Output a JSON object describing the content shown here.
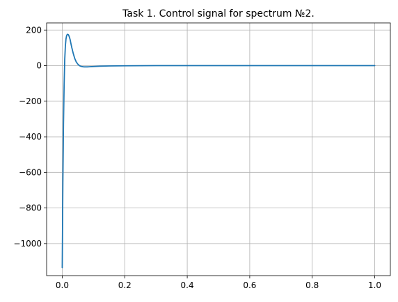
{
  "chart_data": {
    "type": "line",
    "title": "Task 1. Control signal for spectrum №2.",
    "xlabel": "",
    "ylabel": "",
    "xlim": [
      -0.05,
      1.05
    ],
    "ylim": [
      -1180,
      240
    ],
    "grid": true,
    "legend": "none",
    "xticks": [
      0.0,
      0.2,
      0.4,
      0.6,
      0.8,
      1.0
    ],
    "xtick_labels": [
      "0.0",
      "0.2",
      "0.4",
      "0.6",
      "0.8",
      "1.0"
    ],
    "yticks": [
      200,
      0,
      -200,
      -400,
      -600,
      -800,
      -1000
    ],
    "ytick_labels": [
      "200",
      "0",
      "−200",
      "−400",
      "−600",
      "−800",
      "−1000"
    ],
    "series": [
      {
        "color": "#1f77b4",
        "x": [
          0.0,
          0.002,
          0.004,
          0.006,
          0.008,
          0.01,
          0.012,
          0.014,
          0.016,
          0.018,
          0.02,
          0.022,
          0.025,
          0.028,
          0.031,
          0.035,
          0.04,
          0.045,
          0.05,
          0.055,
          0.06,
          0.065,
          0.07,
          0.08,
          0.09,
          0.1,
          0.12,
          0.15,
          0.2,
          0.25,
          0.3,
          0.4,
          0.5,
          0.6,
          0.7,
          0.8,
          0.9,
          1.0
        ],
        "y": [
          -1135,
          -660,
          -330,
          -110,
          35,
          110,
          150,
          168,
          175,
          176,
          173,
          165,
          148,
          122,
          98,
          70,
          40,
          20,
          8,
          0,
          -4,
          -6,
          -7,
          -7,
          -6,
          -5,
          -3,
          -2,
          -1,
          -0.5,
          0,
          0,
          0,
          0,
          0,
          0,
          0,
          0
        ]
      }
    ]
  }
}
